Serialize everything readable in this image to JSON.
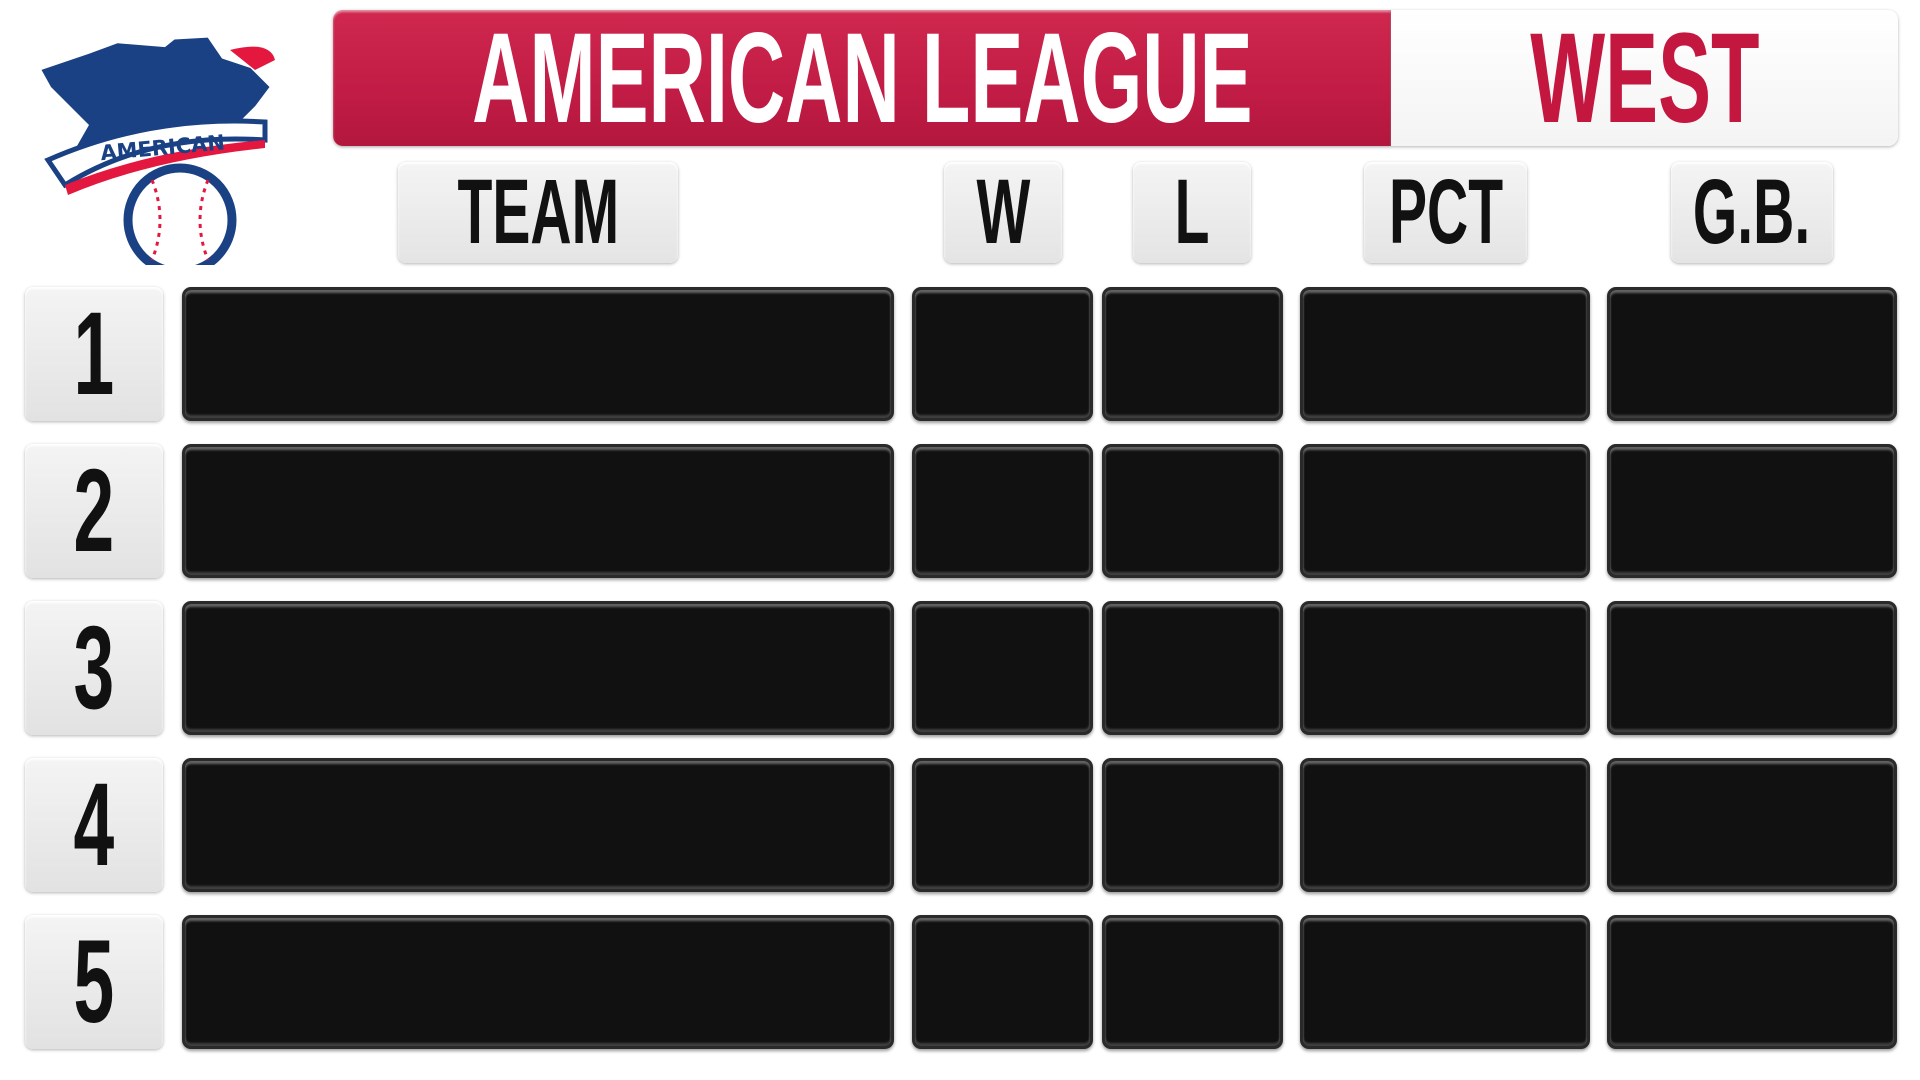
{
  "logo": {
    "text": "AMERICAN",
    "colors": {
      "blue": "#1a4183",
      "red": "#e4173e"
    }
  },
  "header": {
    "league": "AMERICAN LEAGUE",
    "division": "WEST",
    "accent": "#c11c45"
  },
  "columns": {
    "team": "TEAM",
    "w": "W",
    "l": "L",
    "pct": "PCT",
    "gb": "G.B."
  },
  "rows": [
    {
      "rank": "1",
      "team": "",
      "w": "",
      "l": "",
      "pct": "",
      "gb": ""
    },
    {
      "rank": "2",
      "team": "",
      "w": "",
      "l": "",
      "pct": "",
      "gb": ""
    },
    {
      "rank": "3",
      "team": "",
      "w": "",
      "l": "",
      "pct": "",
      "gb": ""
    },
    {
      "rank": "4",
      "team": "",
      "w": "",
      "l": "",
      "pct": "",
      "gb": ""
    },
    {
      "rank": "5",
      "team": "",
      "w": "",
      "l": "",
      "pct": "",
      "gb": ""
    }
  ]
}
